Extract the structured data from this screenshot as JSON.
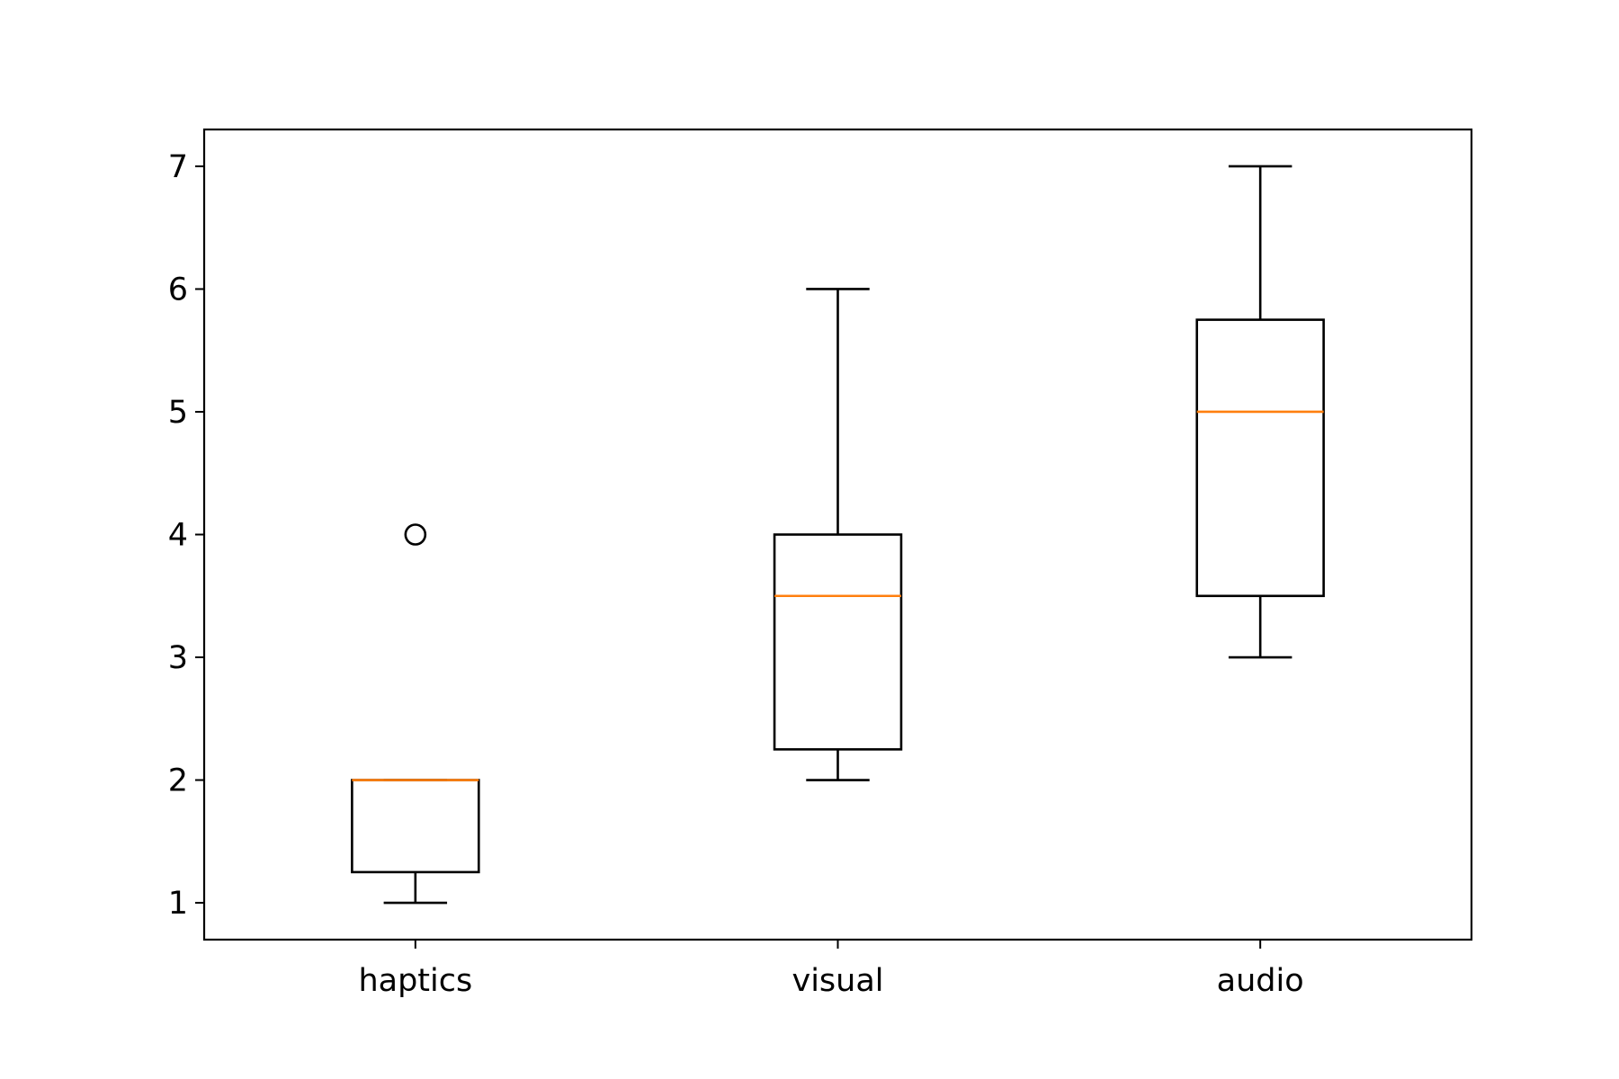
{
  "chart_data": {
    "type": "box",
    "categories": [
      "haptics",
      "visual",
      "audio"
    ],
    "boxes": [
      {
        "whislo": 1,
        "q1": 1.25,
        "med": 2,
        "q3": 2,
        "whishi": 2,
        "fliers": [
          4
        ]
      },
      {
        "whislo": 2,
        "q1": 2.25,
        "med": 3.5,
        "q3": 4,
        "whishi": 6,
        "fliers": []
      },
      {
        "whislo": 3,
        "q1": 3.5,
        "med": 5,
        "q3": 5.75,
        "whishi": 7,
        "fliers": []
      }
    ],
    "box_color": "#000000",
    "median_color": "#ff7f0e",
    "ylim": [
      0.7,
      7.3
    ],
    "yticks": [
      1,
      2,
      3,
      4,
      5,
      6,
      7
    ],
    "grid": false
  }
}
